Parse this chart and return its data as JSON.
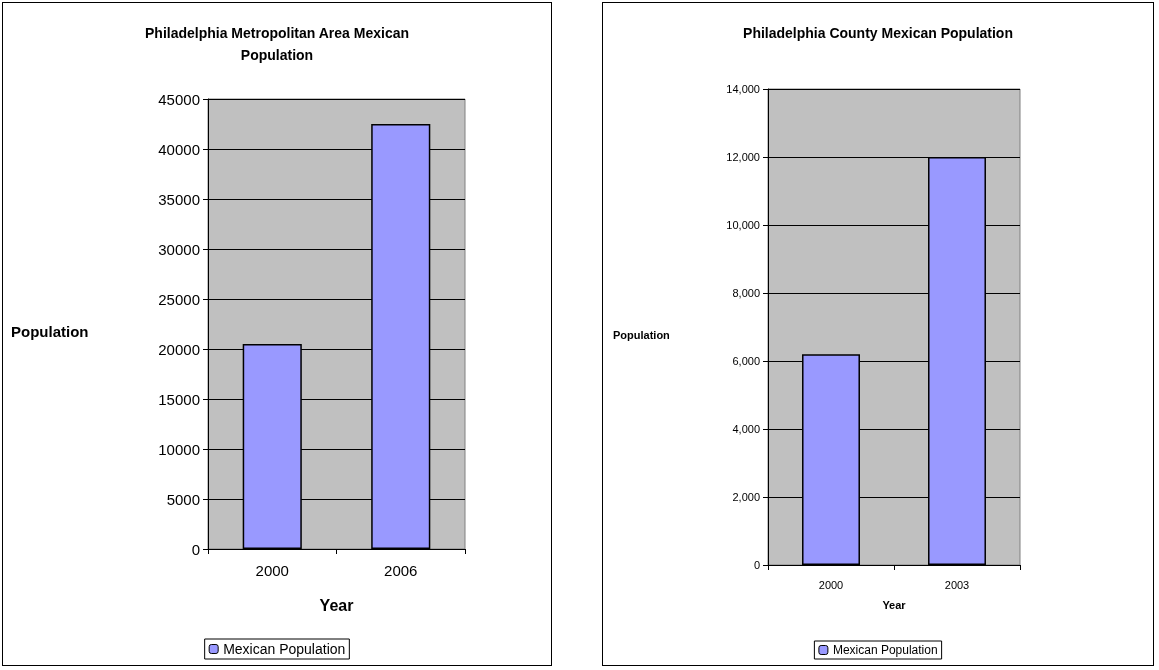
{
  "chart_data": [
    {
      "type": "bar",
      "title": "Philadelphia Metropolitan Area Mexican\nPopulation",
      "xlabel": "Year",
      "ylabel": "Population",
      "categories": [
        "2000",
        "2006"
      ],
      "series": [
        {
          "name": "Mexican Population",
          "color": "#9999ff",
          "values": [
            20500,
            42500
          ]
        }
      ],
      "ylim": [
        0,
        45000
      ],
      "yticks": [
        0,
        5000,
        10000,
        15000,
        20000,
        25000,
        30000,
        35000,
        40000,
        45000
      ],
      "grid": "y",
      "legend": "bottom"
    },
    {
      "type": "bar",
      "title": "Philadelphia County Mexican Population",
      "xlabel": "Year",
      "ylabel": "Population",
      "categories": [
        "2000",
        "2003"
      ],
      "series": [
        {
          "name": "Mexican Population",
          "color": "#9999ff",
          "values": [
            6200,
            12000
          ]
        }
      ],
      "ylim": [
        0,
        14000
      ],
      "yticks": [
        0,
        {
          "value": 2000,
          "label": "2,000"
        },
        {
          "value": 4000,
          "label": "4,000"
        },
        {
          "value": 6000,
          "label": "6,000"
        },
        {
          "value": 8000,
          "label": "8,000"
        },
        {
          "value": 10000,
          "label": "10,000"
        },
        {
          "value": 12000,
          "label": "12,000"
        },
        {
          "value": 14000,
          "label": "14,000"
        }
      ],
      "grid": "y",
      "legend": "bottom"
    }
  ]
}
